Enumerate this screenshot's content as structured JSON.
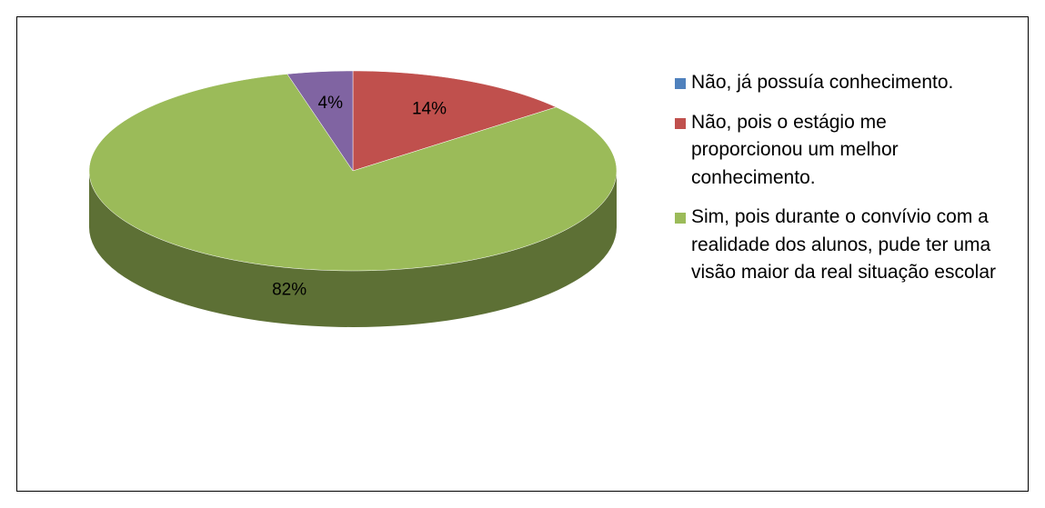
{
  "chart_data": {
    "type": "pie",
    "categories": [
      "Não, já possuía conhecimento.",
      "Não, pois o estágio me proporcionou um melhor conhecimento.",
      "Sim, pois durante o convívio com a realidade dos alunos, pude ter uma visão maior da real situação escolar",
      null
    ],
    "values": [
      0,
      14,
      82,
      4
    ],
    "value_labels": [
      null,
      "14%",
      "82%",
      "4%"
    ],
    "colors": [
      "#4f81bd",
      "#c0504d",
      "#9bbb59",
      "#8064a2"
    ],
    "legend": "right"
  }
}
